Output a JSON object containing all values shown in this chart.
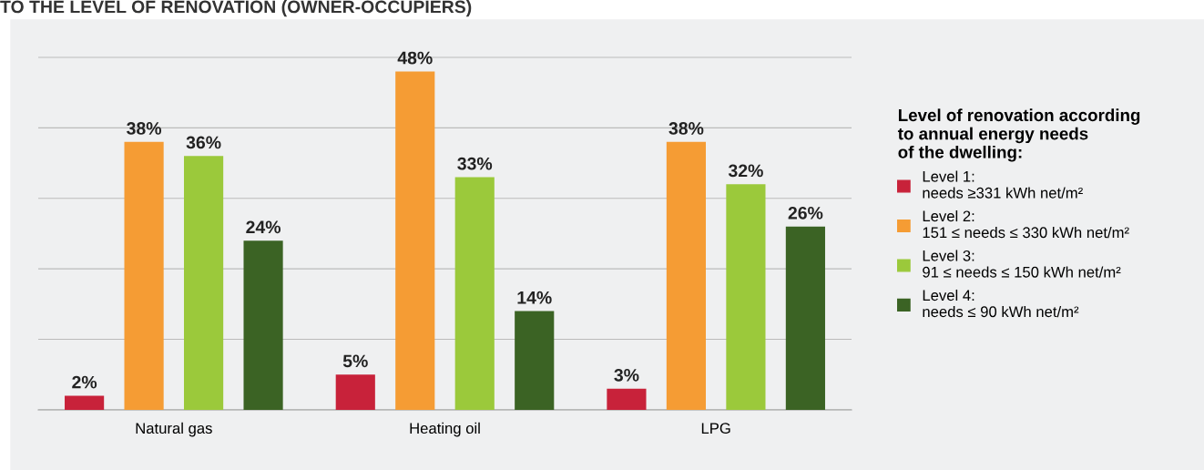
{
  "chart_data": {
    "type": "bar",
    "title": "TO THE LEVEL OF RENOVATION (OWNER-OCCUPIERS)",
    "categories": [
      "Natural gas",
      "Heating oil",
      "LPG"
    ],
    "series": [
      {
        "name": "Level 1:\nneeds ≥331 kWh net/m²",
        "color": "#c8223a",
        "values": [
          2,
          5,
          3
        ],
        "value_labels": [
          "2%",
          "5%",
          "3%"
        ]
      },
      {
        "name": "Level 2:\n151 ≤ needs ≤ 330 kWh net/m²",
        "color": "#f59c34",
        "values": [
          38,
          48,
          38
        ],
        "value_labels": [
          "38%",
          "48%",
          "38%"
        ]
      },
      {
        "name": "Level 3:\n91 ≤ needs ≤ 150 kWh net/m²",
        "color": "#9bc93b",
        "values": [
          36,
          33,
          32
        ],
        "value_labels": [
          "36%",
          "33%",
          "32%"
        ]
      },
      {
        "name": "Level 4:\nneeds ≤ 90 kWh net/m²",
        "color": "#3b6324",
        "values": [
          24,
          14,
          26
        ],
        "value_labels": [
          "24%",
          "14%",
          "26%"
        ]
      }
    ],
    "legend_title": "Level of renovation according\nto annual energy needs\nof the dwelling:",
    "tick_labels": "x",
    "grid": "y",
    "legend": "right"
  }
}
